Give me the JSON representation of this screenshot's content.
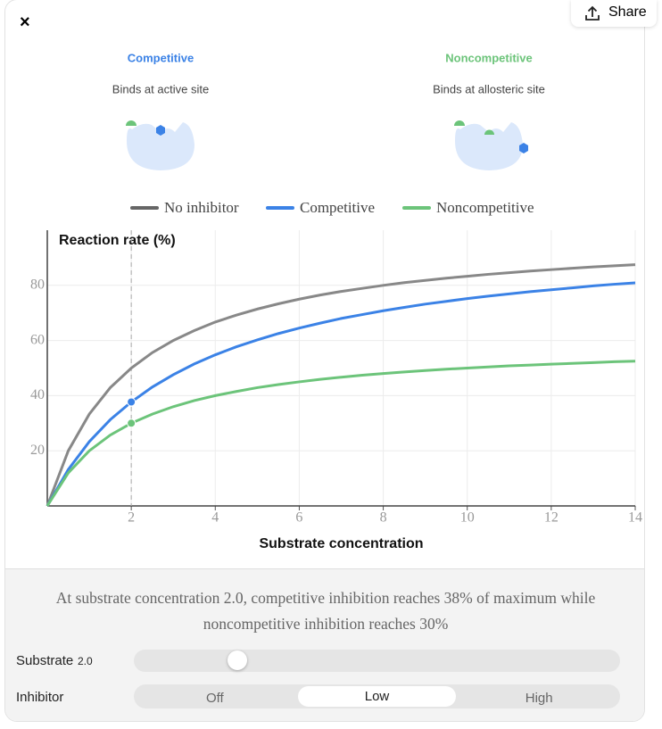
{
  "header": {
    "close": "×",
    "share": "Share"
  },
  "diagrams": [
    {
      "title": "Competitive",
      "subtitle": "Binds at active site"
    },
    {
      "title": "Noncompetitive",
      "subtitle": "Binds at allosteric site"
    }
  ],
  "chart_data": {
    "type": "line",
    "y_label": "Reaction rate (%)",
    "x_label": "Substrate concentration",
    "x": [
      0,
      0.5,
      1,
      1.5,
      2,
      2.5,
      3,
      3.5,
      4,
      4.5,
      5,
      5.5,
      6,
      6.5,
      7,
      7.5,
      8,
      8.5,
      9,
      9.5,
      10,
      10.5,
      11,
      11.5,
      12,
      12.5,
      13,
      13.5,
      14
    ],
    "series": [
      {
        "name": "No inhibitor",
        "color": "#888888",
        "legend_color": "#666666",
        "values": [
          0,
          20,
          33.3,
          42.9,
          50,
          55.6,
          60,
          63.6,
          66.7,
          69.2,
          71.4,
          73.3,
          75,
          76.5,
          77.8,
          78.9,
          80,
          81,
          81.8,
          82.6,
          83.3,
          84,
          84.6,
          85.2,
          85.7,
          86.2,
          86.7,
          87.1,
          87.5
        ]
      },
      {
        "name": "Competitive",
        "color": "#3b82e6",
        "values": [
          0,
          13.2,
          23.3,
          31.3,
          37.7,
          43.1,
          47.6,
          51.5,
          54.8,
          57.7,
          60.2,
          62.5,
          64.5,
          66.3,
          68,
          69.4,
          70.8,
          72,
          73.2,
          74.2,
          75.2,
          76.1,
          76.9,
          77.7,
          78.4,
          79.1,
          79.8,
          80.4,
          80.9
        ]
      },
      {
        "name": "Noncompetitive",
        "color": "#6cc47a",
        "values": [
          0,
          12,
          20,
          25.7,
          30,
          33.3,
          36,
          38.2,
          40,
          41.5,
          42.9,
          44,
          45,
          45.9,
          46.7,
          47.4,
          48,
          48.6,
          49.1,
          49.6,
          50,
          50.4,
          50.8,
          51.1,
          51.4,
          51.7,
          52,
          52.3,
          52.5
        ]
      }
    ],
    "xlim": [
      0,
      14
    ],
    "xticks": [
      2,
      4,
      6,
      8,
      10,
      12,
      14
    ],
    "ylim": [
      0,
      100
    ],
    "yticks": [
      20,
      40,
      60,
      80
    ],
    "grid": true
  },
  "caption": "At substrate concentration 2.0, competitive inhibition reaches 38% of maximum while noncompetitive inhibition reaches 30%",
  "controls": {
    "substrate": {
      "label": "Substrate",
      "value": {
        "value": 2,
        "label": "2.0"
      }
    },
    "inhibitor": {
      "label": "Inhibitor",
      "options": [
        "Off",
        "Low",
        "High"
      ]
    }
  }
}
